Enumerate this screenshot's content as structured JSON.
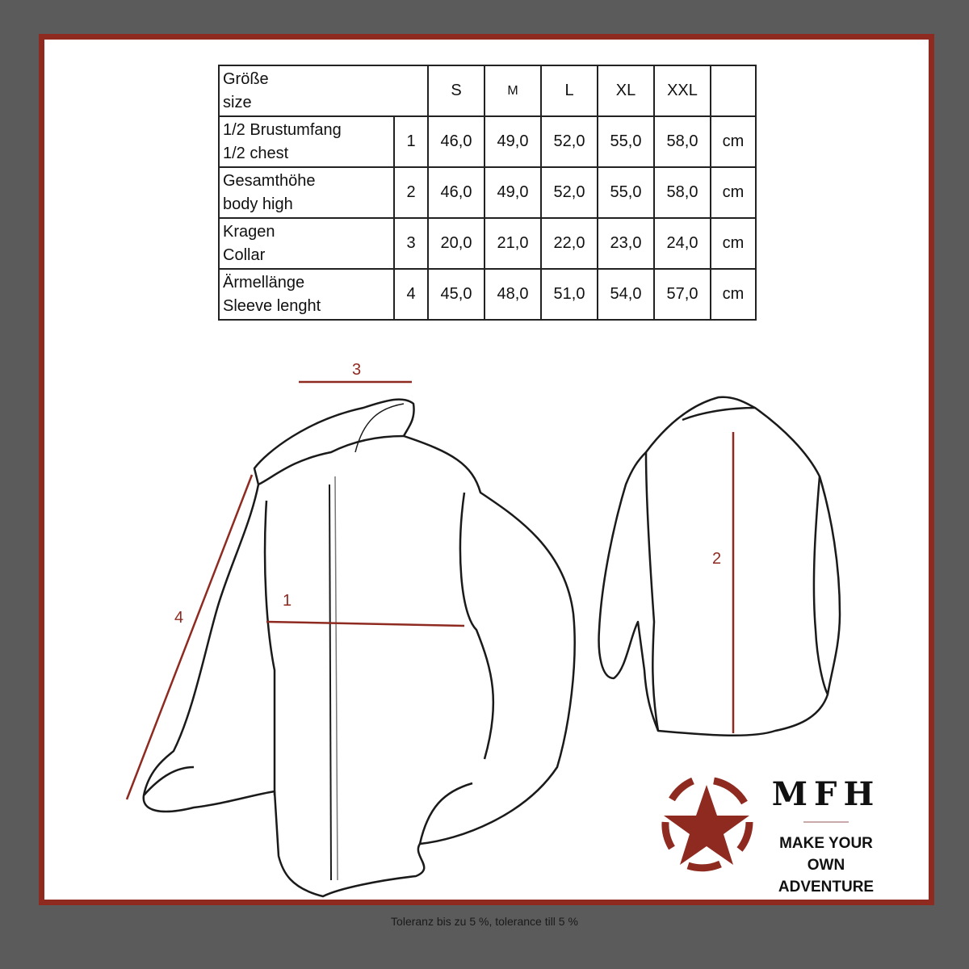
{
  "table": {
    "header": {
      "label_de": "Größe",
      "label_en": "size",
      "sizes": [
        "S",
        "M",
        "L",
        "XL",
        "XXL"
      ]
    },
    "rows": [
      {
        "label_de": "1/2 Brustumfang",
        "label_en": "1/2 chest",
        "num": "1",
        "values": [
          "46,0",
          "49,0",
          "52,0",
          "55,0",
          "58,0"
        ],
        "unit": "cm"
      },
      {
        "label_de": "Gesamthöhe",
        "label_en": "body high",
        "num": "2",
        "values": [
          "46,0",
          "49,0",
          "52,0",
          "55,0",
          "58,0"
        ],
        "unit": "cm"
      },
      {
        "label_de": "Kragen",
        "label_en": "Collar",
        "num": "3",
        "values": [
          "20,0",
          "21,0",
          "22,0",
          "23,0",
          "24,0"
        ],
        "unit": "cm"
      },
      {
        "label_de": "Ärmellänge",
        "label_en": "Sleeve lenght",
        "num": "4",
        "values": [
          "45,0",
          "48,0",
          "51,0",
          "54,0",
          "57,0"
        ],
        "unit": "cm"
      }
    ]
  },
  "diagram": {
    "labels": {
      "chest": "1",
      "height": "2",
      "collar": "3",
      "sleeve": "4"
    },
    "accent": "#8e2a20"
  },
  "logo": {
    "brand": "MFH",
    "slogan_1": "MAKE YOUR OWN",
    "slogan_2": "ADVENTURE"
  },
  "footer": "Toleranz bis zu 5 %, tolerance till 5 %"
}
